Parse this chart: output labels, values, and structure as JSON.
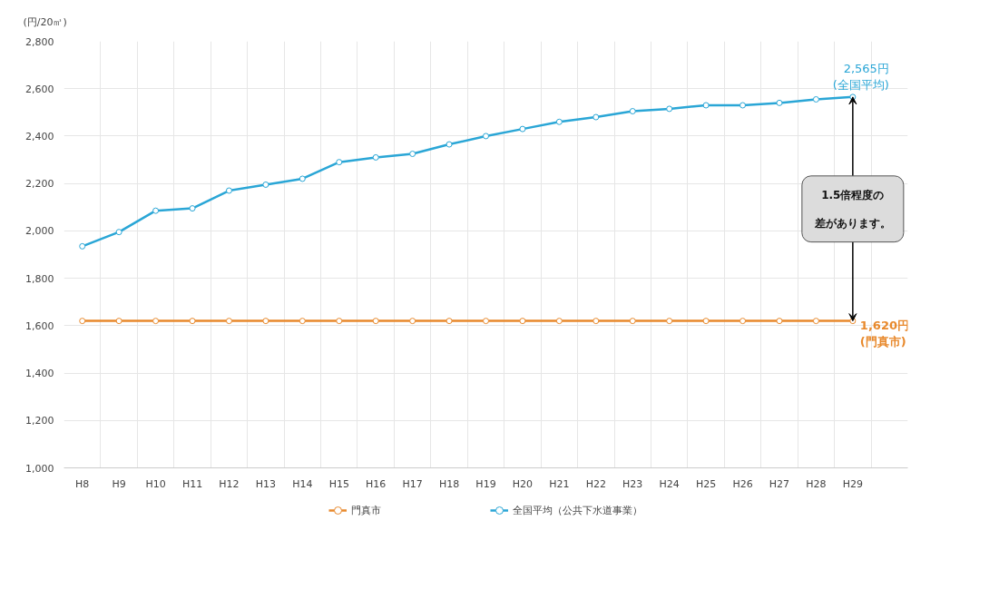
{
  "chart_data": {
    "type": "line",
    "ylabel": "(円/20㎥)",
    "categories": [
      "H8",
      "H9",
      "H10",
      "H11",
      "H12",
      "H13",
      "H14",
      "H15",
      "H16",
      "H17",
      "H18",
      "H19",
      "H20",
      "H21",
      "H22",
      "H23",
      "H24",
      "H25",
      "H26",
      "H27",
      "H28",
      "H29"
    ],
    "series": [
      {
        "name": "門真市",
        "color": "#e8892c",
        "values": [
          1620,
          1620,
          1620,
          1620,
          1620,
          1620,
          1620,
          1620,
          1620,
          1620,
          1620,
          1620,
          1620,
          1620,
          1620,
          1620,
          1620,
          1620,
          1620,
          1620,
          1620,
          1620
        ]
      },
      {
        "name": "全国平均（公共下水道事業）",
        "color": "#2aa6d6",
        "values": [
          1935,
          1995,
          2085,
          2095,
          2170,
          2195,
          2220,
          2290,
          2310,
          2325,
          2365,
          2400,
          2430,
          2460,
          2480,
          2505,
          2515,
          2530,
          2530,
          2540,
          2555,
          2565
        ]
      }
    ],
    "ylim": [
      1000,
      2800
    ],
    "yticks": [
      {
        "value": 1000,
        "label": "1,000"
      },
      {
        "value": 1200,
        "label": "1,200"
      },
      {
        "value": 1400,
        "label": "1,400"
      },
      {
        "value": 1600,
        "label": "1,600"
      },
      {
        "value": 1800,
        "label": "1,800"
      },
      {
        "value": 2000,
        "label": "2,000"
      },
      {
        "value": 2200,
        "label": "2,200"
      },
      {
        "value": 2400,
        "label": "2,400"
      },
      {
        "value": 2600,
        "label": "2,600"
      },
      {
        "value": 2800,
        "label": "2,800"
      }
    ],
    "annotations": [
      {
        "text": "2,565円\n(全国平均)",
        "x": "H29",
        "y": 2565
      },
      {
        "text": "1,620円\n(門真市)",
        "x": "H29",
        "y": 1620
      },
      "1.5倍程度の差があります。"
    ],
    "grid": true,
    "legend": "bottom",
    "marker": "circle",
    "line_style": "solid"
  }
}
